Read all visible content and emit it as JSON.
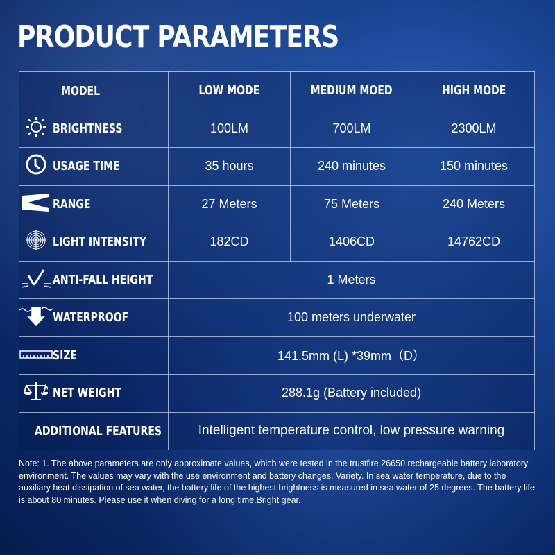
{
  "title": "PRODUCT PARAMETERS",
  "header": {
    "model": "MODEL",
    "low": "LOW MODE",
    "medium": "MEDIUM MOED",
    "high": "HIGH MODE"
  },
  "rows": [
    {
      "label": "BRIGHTNESS",
      "icon": "sun-icon",
      "low": "100LM",
      "medium": "700LM",
      "high": "2300LM"
    },
    {
      "label": "USAGE TIME",
      "icon": "clock-icon",
      "low": "35 hours",
      "medium": "240 minutes",
      "high": "150 minutes"
    },
    {
      "label": "RANGE",
      "icon": "beam-icon",
      "low": "27 Meters",
      "medium": "75 Meters",
      "high": "240 Meters"
    },
    {
      "label": "LIGHT INTENSITY",
      "icon": "target-icon",
      "low": "182CD",
      "medium": "1406CD",
      "high": "14762CD"
    },
    {
      "label": "ANTI-FALL HEIGHT",
      "icon": "fall-icon",
      "value": "1 Meters"
    },
    {
      "label": "WATERPROOF",
      "icon": "water-arrow-icon",
      "value": "100 meters underwater"
    },
    {
      "label": "SIZE",
      "icon": "ruler-icon",
      "value": "141.5mm (L) *39mm（D）"
    },
    {
      "label": "NET WEIGHT",
      "icon": "scale-icon",
      "value": "288.1g (Battery included)"
    },
    {
      "label": "ADDITIONAL FEATURES",
      "value": "Intelligent temperature control, low pressure warning"
    }
  ],
  "note": "Note: 1. The above parameters are only approximate values, which were tested in the trustfire 26650 rechargeable battery laboratory environment. The values may vary with the use environment and battery changes. Variety. In sea water temperature, due to the auxiliary heat dissipation of sea water, the battery life of the highest brightness is measured in sea water of 25 degrees. The battery life is about 80 minutes. Please use it when diving for a long time.Bright gear."
}
